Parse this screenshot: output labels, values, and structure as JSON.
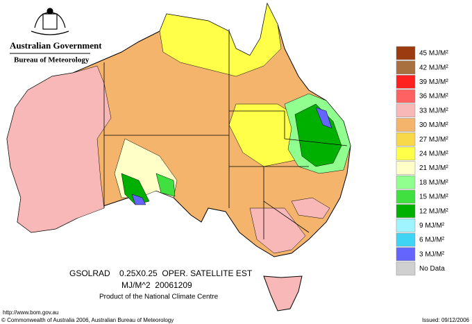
{
  "header": {
    "government": "Australian Government",
    "bureau": "Bureau of Meteorology"
  },
  "legend": {
    "items": [
      {
        "label": "45 MJ/M²",
        "color": "#9c3a10"
      },
      {
        "label": "42 MJ/M²",
        "color": "#a8703e"
      },
      {
        "label": "39 MJ/M²",
        "color": "#ff2020"
      },
      {
        "label": "36 MJ/M²",
        "color": "#ff6262"
      },
      {
        "label": "33 MJ/M²",
        "color": "#f8b8b8"
      },
      {
        "label": "30 MJ/M²",
        "color": "#f4b46c"
      },
      {
        "label": "27 MJ/M²",
        "color": "#f8d848"
      },
      {
        "label": "24 MJ/M²",
        "color": "#ffff4a"
      },
      {
        "label": "21 MJ/M²",
        "color": "#ffffc8"
      },
      {
        "label": "18 MJ/M²",
        "color": "#90ff90"
      },
      {
        "label": "15 MJ/M²",
        "color": "#40e040"
      },
      {
        "label": "12 MJ/M²",
        "color": "#00b000"
      },
      {
        "label": "9 MJ/M²",
        "color": "#a0f4ff"
      },
      {
        "label": "6 MJ/M²",
        "color": "#40d4f4"
      },
      {
        "label": "3 MJ/M²",
        "color": "#6464ff"
      },
      {
        "label": "No Data",
        "color": "#d0d0d0"
      }
    ]
  },
  "caption": {
    "line1": "GSOLRAD    0.25X0.25  OPER. SATELLITE EST",
    "line2": "MJ/M^2  20061209",
    "line3": "Product of the National Climate Centre"
  },
  "footer": {
    "url": "http://www.bom.gov.au",
    "copyright": "© Commonwealth of Australia 2006, Australian Bureau of Meteorology",
    "issued": "Issued: 09/12/2006"
  }
}
